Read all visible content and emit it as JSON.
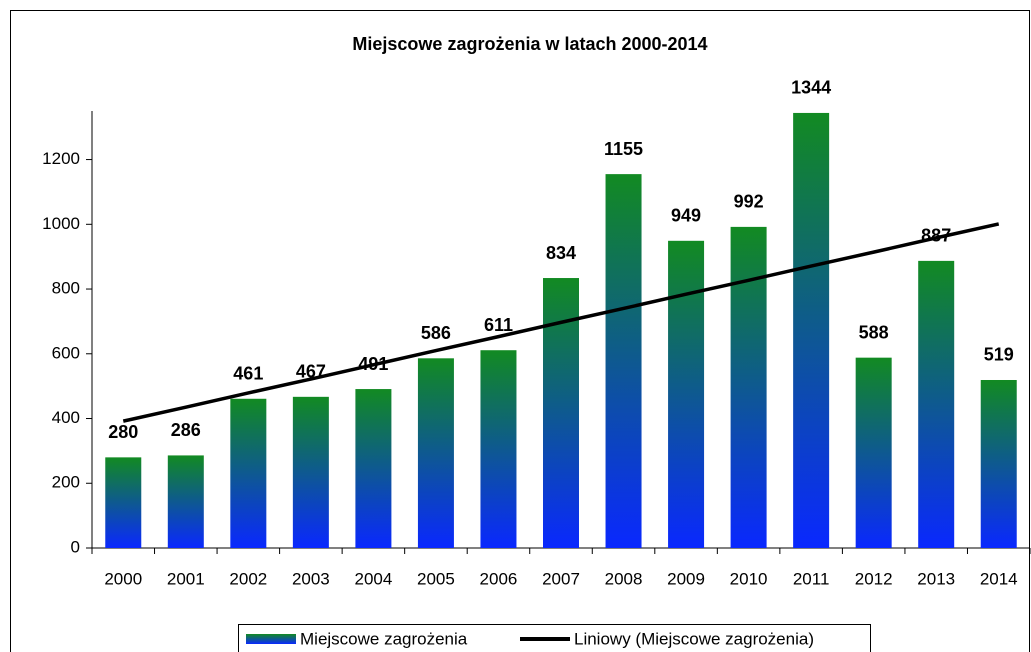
{
  "chart_data": {
    "type": "bar",
    "title": "Miejscowe zagrożenia w latach 2000-2014",
    "categories": [
      "2000",
      "2001",
      "2002",
      "2003",
      "2004",
      "2005",
      "2006",
      "2007",
      "2008",
      "2009",
      "2010",
      "2011",
      "2012",
      "2013",
      "2014"
    ],
    "series": [
      {
        "name": "Miejscowe zagrożenia",
        "type": "bar",
        "gradient": [
          "#128a22",
          "#0a28ff"
        ],
        "values": [
          280,
          286,
          461,
          467,
          491,
          586,
          611,
          834,
          1155,
          949,
          992,
          1344,
          588,
          887,
          519
        ]
      },
      {
        "name": "Liniowy (Miejscowe zagrożenia)",
        "type": "line",
        "color": "#000000",
        "values": [
          392,
          435,
          479,
          522,
          566,
          610,
          653,
          697,
          740,
          784,
          827,
          871,
          914,
          958,
          1001
        ]
      }
    ],
    "ylim": [
      0,
      1350
    ],
    "yticks": [
      0,
      200,
      400,
      600,
      800,
      1000,
      1200
    ],
    "legend": "bottom"
  }
}
